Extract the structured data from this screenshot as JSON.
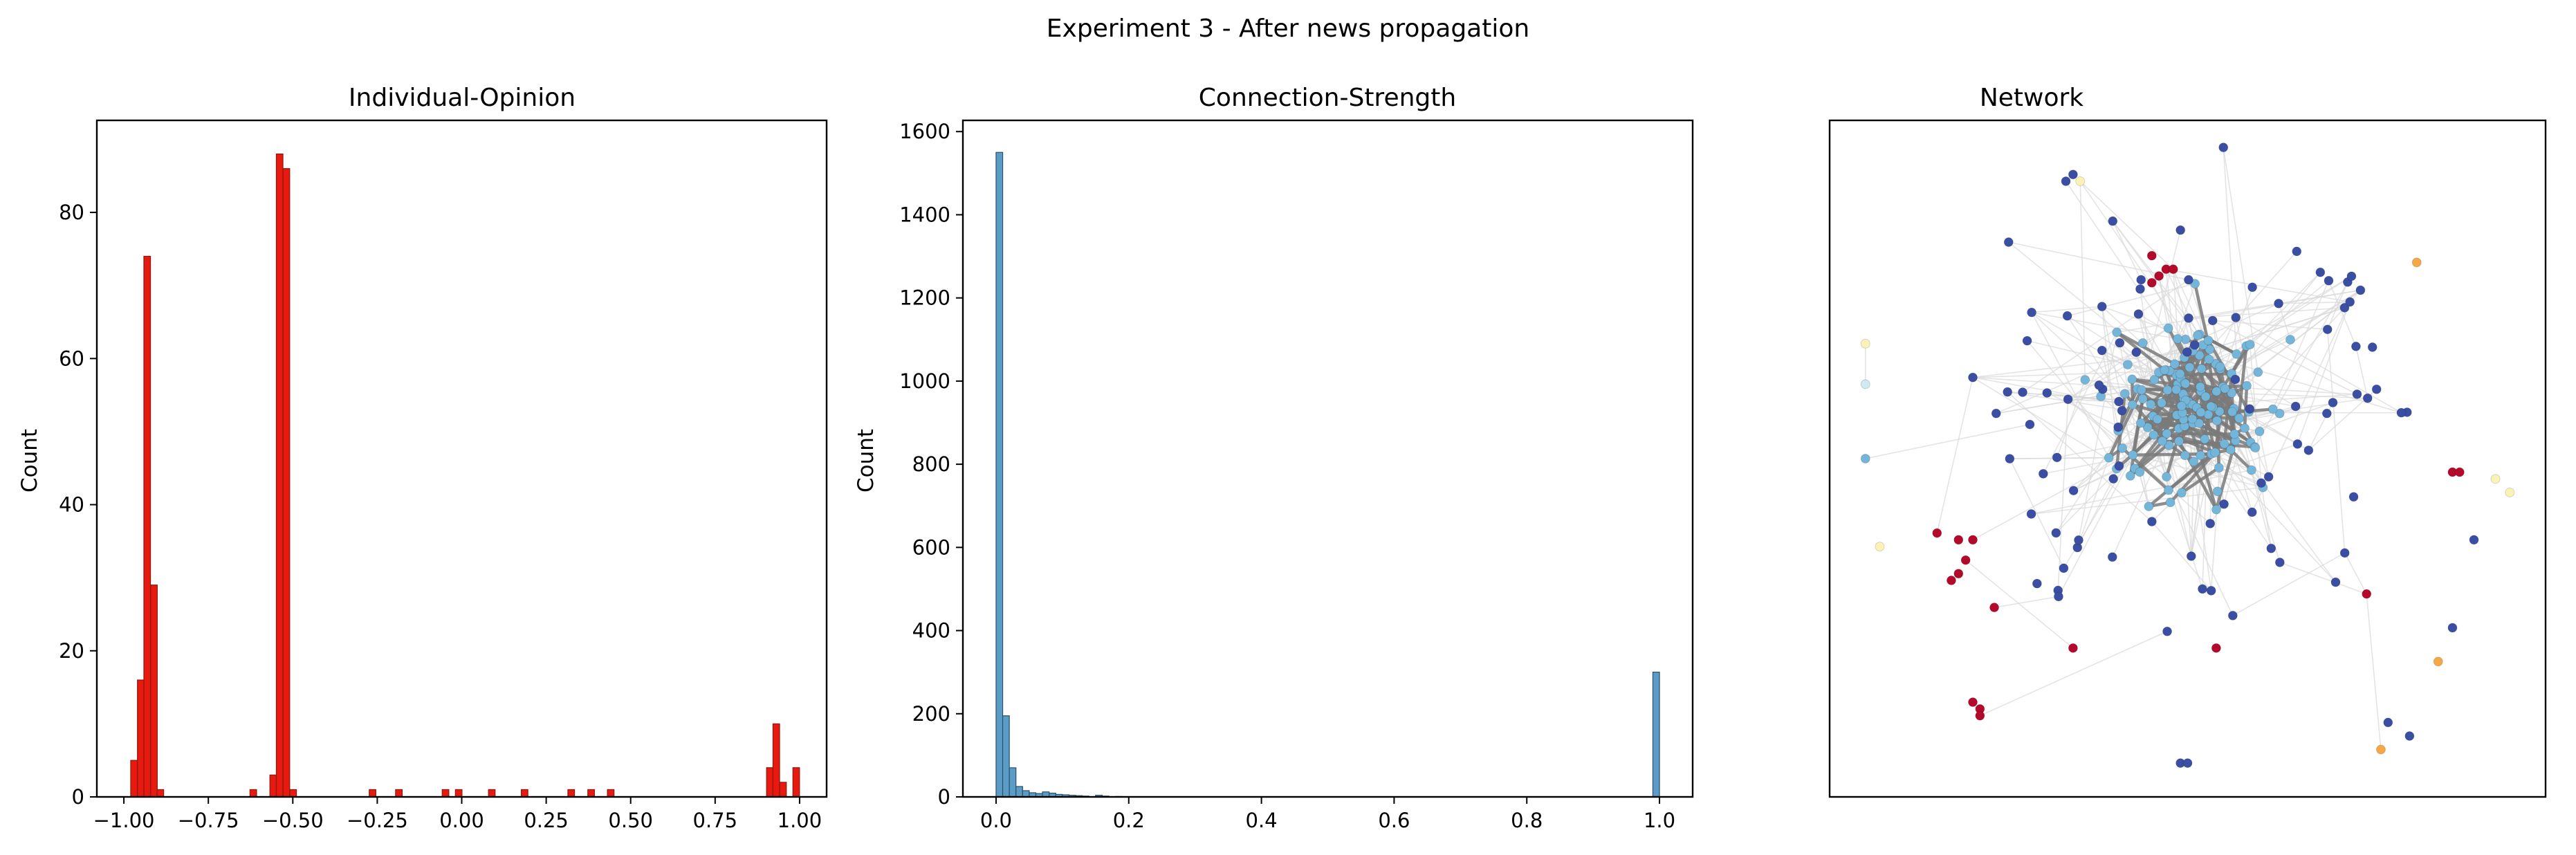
{
  "figure": {
    "suptitle": "Experiment 3 - After news propagation"
  },
  "chart_data": [
    {
      "type": "bar",
      "title": "Individual-Opinion",
      "xlabel": "",
      "ylabel": "Count",
      "xlim": [
        -1.08,
        1.08
      ],
      "ylim": [
        0,
        92.6
      ],
      "color": "#e8190f",
      "edge_color": "#8a1a10",
      "bin_width": 0.0196,
      "x_ticks": [
        "-1.00",
        "-0.75",
        "-0.50",
        "-0.25",
        "0.00",
        "0.25",
        "0.50",
        "0.75",
        "1.00"
      ],
      "y_ticks": [
        "0",
        "20",
        "40",
        "60",
        "80"
      ],
      "bins": [
        {
          "x": -0.97,
          "count": 5
        },
        {
          "x": -0.95,
          "count": 16
        },
        {
          "x": -0.931,
          "count": 74
        },
        {
          "x": -0.911,
          "count": 29
        },
        {
          "x": -0.892,
          "count": 1
        },
        {
          "x": -0.617,
          "count": 1
        },
        {
          "x": -0.558,
          "count": 3
        },
        {
          "x": -0.539,
          "count": 88
        },
        {
          "x": -0.519,
          "count": 86
        },
        {
          "x": -0.499,
          "count": 1
        },
        {
          "x": -0.264,
          "count": 1
        },
        {
          "x": -0.186,
          "count": 1
        },
        {
          "x": -0.048,
          "count": 1
        },
        {
          "x": -0.009,
          "count": 1
        },
        {
          "x": 0.089,
          "count": 1
        },
        {
          "x": 0.186,
          "count": 1
        },
        {
          "x": 0.324,
          "count": 1
        },
        {
          "x": 0.383,
          "count": 1
        },
        {
          "x": 0.441,
          "count": 1
        },
        {
          "x": 0.912,
          "count": 4
        },
        {
          "x": 0.931,
          "count": 10
        },
        {
          "x": 0.951,
          "count": 2
        },
        {
          "x": 0.99,
          "count": 4
        }
      ]
    },
    {
      "type": "bar",
      "title": "Connection-Strength",
      "xlabel": "",
      "ylabel": "Count",
      "xlim": [
        -0.05,
        1.05
      ],
      "ylim": [
        0,
        1627
      ],
      "color": "#5b9cc6",
      "edge_color": "#2c4f66",
      "bin_width": 0.01,
      "x_ticks": [
        "0.0",
        "0.2",
        "0.4",
        "0.6",
        "0.8",
        "1.0"
      ],
      "y_ticks": [
        "0",
        "200",
        "400",
        "600",
        "800",
        "1000",
        "1200",
        "1400",
        "1600"
      ],
      "bins": [
        {
          "x": 0.005,
          "count": 1550
        },
        {
          "x": 0.015,
          "count": 195
        },
        {
          "x": 0.025,
          "count": 70
        },
        {
          "x": 0.035,
          "count": 25
        },
        {
          "x": 0.045,
          "count": 15
        },
        {
          "x": 0.055,
          "count": 10
        },
        {
          "x": 0.065,
          "count": 8
        },
        {
          "x": 0.075,
          "count": 12
        },
        {
          "x": 0.085,
          "count": 9
        },
        {
          "x": 0.095,
          "count": 6
        },
        {
          "x": 0.105,
          "count": 5
        },
        {
          "x": 0.115,
          "count": 4
        },
        {
          "x": 0.125,
          "count": 3
        },
        {
          "x": 0.135,
          "count": 2
        },
        {
          "x": 0.155,
          "count": 4
        },
        {
          "x": 0.165,
          "count": 2
        },
        {
          "x": 0.185,
          "count": 1
        },
        {
          "x": 0.995,
          "count": 300
        }
      ]
    },
    {
      "type": "scatter",
      "title": "Network",
      "xlabel": "",
      "ylabel": "",
      "xlim": [
        0,
        100
      ],
      "ylim": [
        0,
        100
      ],
      "axes_ticks": false,
      "note": "network graph; node color encodes opinion (dark blue ≈ -0.9, light blue ≈ -0.5, red/orange/yellow ≈ +0.9 to +0.2)",
      "colors": {
        "dark_blue": "#3a4fa3",
        "light_blue": "#74b5da",
        "red": "#b5092b",
        "orange": "#f5a845",
        "pale_yellow": "#fbf3b5",
        "pale_cyan": "#cdebf0",
        "strong_edge": "#7a7a7a",
        "weak_edge": "#d8d8d8"
      },
      "seed": 31,
      "clusters": {
        "core_light_blue": {
          "cx": 50,
          "cy": 58,
          "n": 130,
          "spread": 10
        },
        "dark_blue_ring": {
          "cx": 50,
          "cy": 55,
          "n": 85,
          "spread": 20
        },
        "dark_blue_fixed": [
          {
            "x": 33,
            "y": 91
          },
          {
            "x": 34,
            "y": 92
          },
          {
            "x": 25,
            "y": 82
          },
          {
            "x": 55,
            "y": 97
          },
          {
            "x": 20,
            "y": 62
          },
          {
            "x": 90,
            "y": 38
          },
          {
            "x": 87,
            "y": 25
          },
          {
            "x": 49,
            "y": 5
          },
          {
            "x": 50,
            "y": 5
          },
          {
            "x": 81,
            "y": 9
          },
          {
            "x": 78,
            "y": 11
          }
        ],
        "red_nodes": [
          {
            "x": 45,
            "y": 80
          },
          {
            "x": 47,
            "y": 78
          },
          {
            "x": 46,
            "y": 77
          },
          {
            "x": 48,
            "y": 78
          },
          {
            "x": 45,
            "y": 76
          },
          {
            "x": 18,
            "y": 38
          },
          {
            "x": 20,
            "y": 38
          },
          {
            "x": 19,
            "y": 35
          },
          {
            "x": 18,
            "y": 33
          },
          {
            "x": 17,
            "y": 32
          },
          {
            "x": 15,
            "y": 39
          },
          {
            "x": 23,
            "y": 28
          },
          {
            "x": 34,
            "y": 22
          },
          {
            "x": 20,
            "y": 14
          },
          {
            "x": 21,
            "y": 13
          },
          {
            "x": 21,
            "y": 12
          },
          {
            "x": 54,
            "y": 22
          },
          {
            "x": 87,
            "y": 48
          },
          {
            "x": 88,
            "y": 48
          },
          {
            "x": 75,
            "y": 30
          }
        ],
        "orange_nodes": [
          {
            "x": 82,
            "y": 79
          },
          {
            "x": 85,
            "y": 20
          },
          {
            "x": 77,
            "y": 7
          }
        ],
        "pale_nodes": [
          {
            "x": 35,
            "y": 91
          },
          {
            "x": 5,
            "y": 67
          },
          {
            "x": 93,
            "y": 47
          },
          {
            "x": 95,
            "y": 45
          },
          {
            "x": 7,
            "y": 37
          }
        ],
        "pale_cyan_nodes": [
          {
            "x": 5,
            "y": 61
          }
        ],
        "isolated_light_blue": [
          {
            "x": 5,
            "y": 50
          }
        ]
      }
    }
  ]
}
